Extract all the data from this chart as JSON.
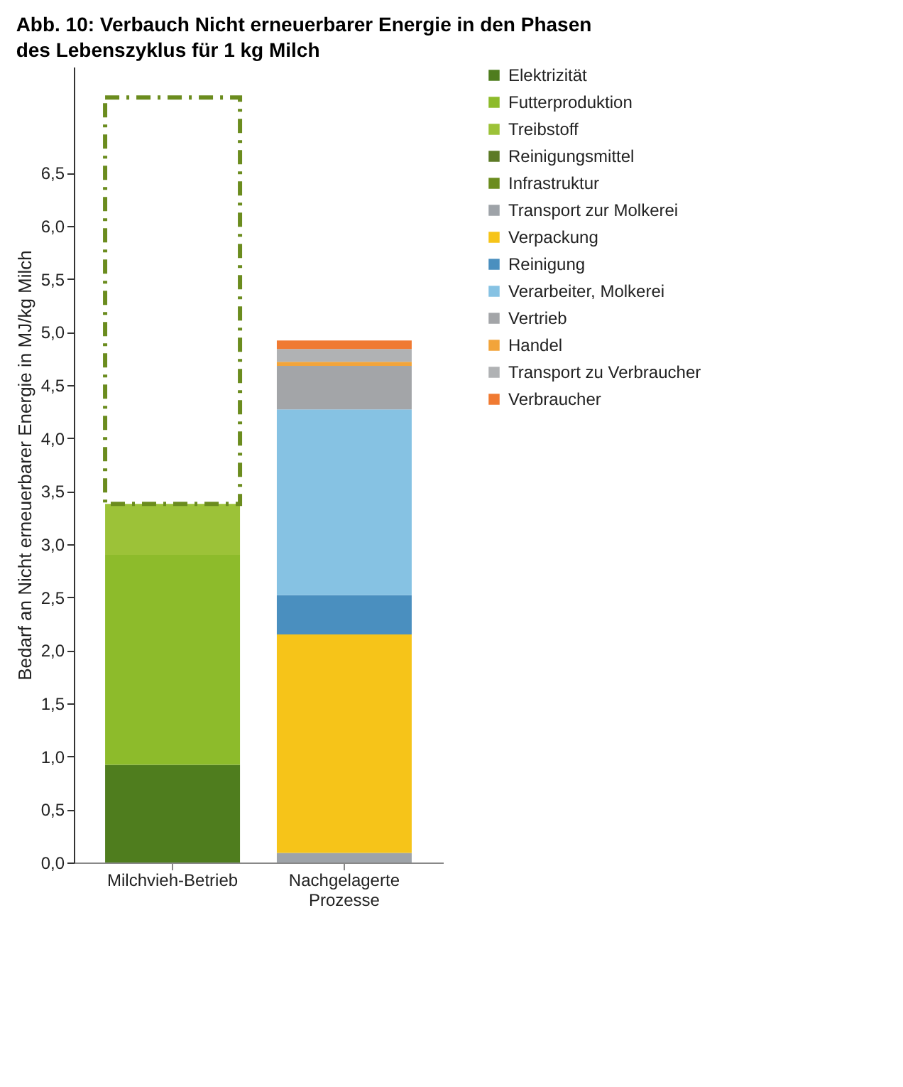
{
  "chart_data": {
    "type": "bar",
    "title": "Abb. 10: Verbauch Nicht erneuerbarer Energie in den Phasen des Lebenszyklus für 1 kg Milch",
    "ylabel": "Bedarf an Nicht erneuerbarer Energie in MJ/kg Milch",
    "categories": [
      "Milchvieh-Betrieb",
      "Nachgelagerte Prozesse"
    ],
    "stacked": true,
    "ylim": [
      0,
      7.5
    ],
    "yticks": [
      {
        "value": 0,
        "label": "0,0"
      },
      {
        "value": 0.5,
        "label": "0,5"
      },
      {
        "value": 1,
        "label": "1,0"
      },
      {
        "value": 1.5,
        "label": "1,5"
      },
      {
        "value": 2,
        "label": "2,0"
      },
      {
        "value": 2.5,
        "label": "2,5"
      },
      {
        "value": 3,
        "label": "3,0"
      },
      {
        "value": 3.5,
        "label": "3,5"
      },
      {
        "value": 4,
        "label": "4,0"
      },
      {
        "value": 4.5,
        "label": "4,5"
      },
      {
        "value": 5,
        "label": "5,0"
      },
      {
        "value": 5.5,
        "label": "5,5"
      },
      {
        "value": 6,
        "label": "6,0"
      },
      {
        "value": 6.5,
        "label": "6,5"
      }
    ],
    "legend": "right",
    "series": [
      {
        "name": "Elektrizität",
        "color": "#4f7d1e",
        "values": [
          0.92,
          null
        ]
      },
      {
        "name": "Futterproduktion",
        "color": "#8dbb2b",
        "values": [
          1.98,
          null
        ]
      },
      {
        "name": "Treibstoff",
        "color": "#9cc238",
        "values": [
          0.48,
          null
        ]
      },
      {
        "name": "Reinigungsmittel",
        "color": "#5c7a26",
        "values": [
          null,
          null
        ]
      },
      {
        "name": "Infrastruktur",
        "color": "#6b8c1e",
        "line_style": "dashed",
        "values": [
          3.83,
          null
        ]
      },
      {
        "name": "Transport zur Molkerei",
        "color": "#9ea3a8",
        "values": [
          null,
          0.09
        ]
      },
      {
        "name": "Verpackung",
        "color": "#f6c419",
        "values": [
          null,
          2.06
        ]
      },
      {
        "name": "Reinigung",
        "color": "#4a8fbf",
        "values": [
          null,
          0.37
        ]
      },
      {
        "name": "Verarbeiter, Molkerei",
        "color": "#86c2e3",
        "values": [
          null,
          1.75
        ]
      },
      {
        "name": "Vertrieb",
        "color": "#a3a5a8",
        "values": [
          null,
          0.41
        ]
      },
      {
        "name": "Handel",
        "color": "#f2a43a",
        "values": [
          null,
          0.04
        ]
      },
      {
        "name": "Transport zu Verbraucher",
        "color": "#b0b2b4",
        "values": [
          null,
          0.12
        ]
      },
      {
        "name": "Verbraucher",
        "color": "#f07a32",
        "values": [
          null,
          0.08
        ]
      }
    ]
  }
}
